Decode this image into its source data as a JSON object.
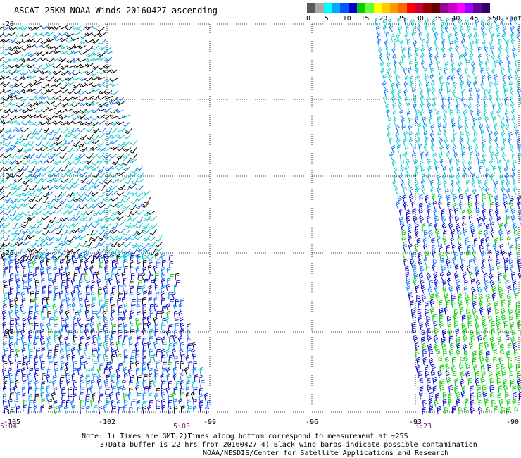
{
  "title": "ASCAT 25KM NOAA Winds 20160427 ascending",
  "colorbar": {
    "labels": [
      "0",
      "5",
      "10",
      "15",
      "20",
      "25",
      "30",
      "35",
      "40",
      "45",
      ">50 knots"
    ],
    "colors": [
      "#5a5a5a",
      "#aaaaaa",
      "#00ffff",
      "#00aaff",
      "#0055ff",
      "#0000cc",
      "#00cc00",
      "#66ff33",
      "#ffff00",
      "#ffcc00",
      "#ff9900",
      "#ff6600",
      "#ff0000",
      "#cc0033",
      "#990000",
      "#660000",
      "#990099",
      "#cc00cc",
      "#ff00ff",
      "#9900ff",
      "#660099",
      "#330066"
    ]
  },
  "map": {
    "lon_ticks": [
      "-105",
      "-102",
      "-99",
      "-96",
      "-93",
      "-90"
    ],
    "lat_ticks": [
      "-20",
      "-22",
      "-24",
      "-26",
      "-28",
      "-30"
    ],
    "lon_range": [
      -105,
      -90
    ],
    "lat_range": [
      -30,
      -20
    ],
    "grid": "dotted"
  },
  "time_labels": [
    "5:04",
    "5:03",
    "3:23"
  ],
  "notes": [
    "Note: 1) Times are GMT 2)Times along bottom correspond to measurement at ~25S",
    "3)Data buffer is 22 hrs from 20160427 4) Black wind barbs indicate possible contamination",
    "NOAA/NESDIS/Center for Satellite Applications and Research"
  ],
  "wind_colors": {
    "contaminated": "#000000",
    "speed_5_10": "#00cccc",
    "speed_10_15": "#0077ff",
    "speed_15_20": "#0000cc",
    "speed_20_25": "#00cc00"
  }
}
